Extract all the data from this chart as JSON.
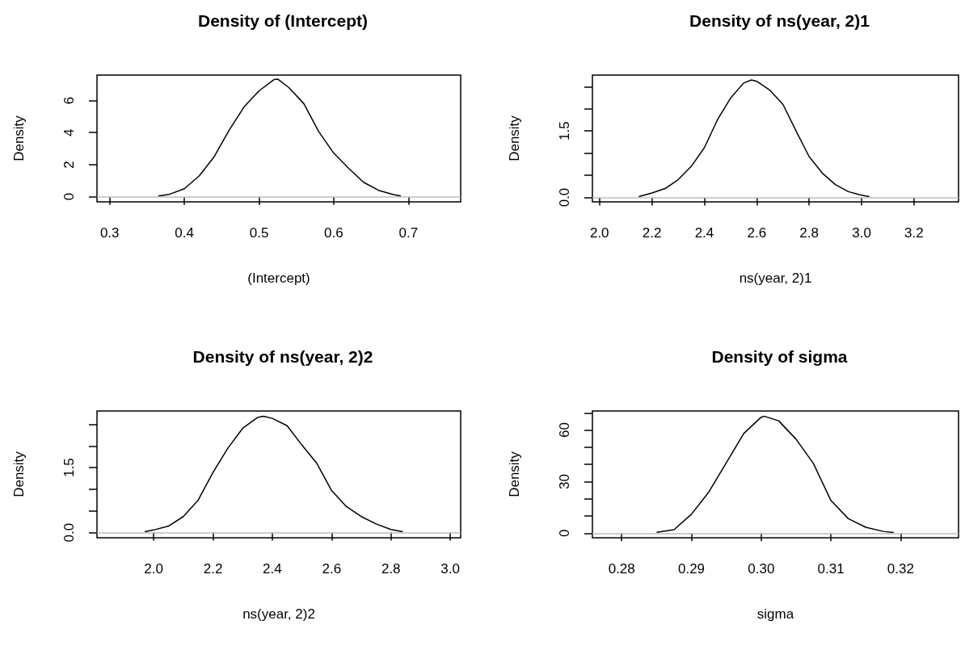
{
  "chart_data": [
    {
      "type": "line",
      "title": "Density of (Intercept)",
      "xlabel": "(Intercept)",
      "ylabel": "Density",
      "color": "#000000",
      "x": [
        0.365,
        0.38,
        0.4,
        0.42,
        0.44,
        0.46,
        0.48,
        0.5,
        0.52,
        0.525,
        0.54,
        0.56,
        0.58,
        0.6,
        0.62,
        0.64,
        0.66,
        0.68,
        0.69
      ],
      "values": [
        0.05,
        0.15,
        0.5,
        1.3,
        2.5,
        4.15,
        5.6,
        6.6,
        7.3,
        7.33,
        6.8,
        5.8,
        4.05,
        2.72,
        1.77,
        0.9,
        0.4,
        0.13,
        0.05
      ],
      "xlim": [
        0.283,
        0.77
      ],
      "xticks": [
        0.3,
        0.4,
        0.5,
        0.6,
        0.7
      ],
      "ylim": [
        -0.32,
        7.58
      ],
      "yticks": [
        0,
        2,
        4,
        6
      ],
      "ref_lines": [
        {
          "axis": "y",
          "value": 0,
          "color": "#bebebe"
        }
      ]
    },
    {
      "type": "line",
      "title": "Density of ns(year, 2)1",
      "xlabel": "ns(year, 2)1",
      "ylabel": "Density",
      "color": "#000000",
      "x": [
        2.15,
        2.2,
        2.25,
        2.3,
        2.35,
        2.4,
        2.45,
        2.5,
        2.55,
        2.58,
        2.6,
        2.65,
        2.7,
        2.75,
        2.8,
        2.85,
        2.9,
        2.95,
        3.0,
        3.03
      ],
      "values": [
        0.02,
        0.1,
        0.2,
        0.4,
        0.7,
        1.12,
        1.75,
        2.24,
        2.58,
        2.65,
        2.62,
        2.42,
        2.1,
        1.5,
        0.92,
        0.55,
        0.29,
        0.13,
        0.05,
        0.02
      ],
      "xlim": [
        1.973,
        3.37
      ],
      "xticks": [
        {
          "value": 2,
          "label": "2.0"
        },
        {
          "value": 2.2,
          "label": "2.2"
        },
        2.4,
        2.6,
        2.8,
        {
          "value": 3,
          "label": "3.0"
        },
        3.2
      ],
      "ylim": [
        -0.1,
        2.76
      ],
      "yticks": [
        {
          "value": 0,
          "label": "0.0"
        },
        {
          "value": 0.5,
          "label": null
        },
        {
          "value": 1,
          "label": null
        },
        1.5,
        {
          "value": 2,
          "label": null
        },
        {
          "value": 2.5,
          "label": null
        }
      ],
      "ref_lines": [
        {
          "axis": "y",
          "value": 0,
          "color": "#bebebe"
        }
      ]
    },
    {
      "type": "line",
      "title": "Density of ns(year, 2)2",
      "xlabel": "ns(year, 2)2",
      "ylabel": "Density",
      "color": "#000000",
      "x": [
        1.97,
        2.0,
        2.05,
        2.1,
        2.15,
        2.2,
        2.25,
        2.3,
        2.35,
        2.37,
        2.4,
        2.45,
        2.5,
        2.55,
        2.6,
        2.65,
        2.7,
        2.75,
        2.8,
        2.84
      ],
      "values": [
        0.02,
        0.06,
        0.15,
        0.37,
        0.75,
        1.39,
        1.95,
        2.41,
        2.66,
        2.69,
        2.64,
        2.47,
        2.02,
        1.6,
        0.97,
        0.6,
        0.37,
        0.2,
        0.07,
        0.02
      ],
      "xlim": [
        1.809,
        3.035
      ],
      "xticks": [
        {
          "value": 2,
          "label": "2.0"
        },
        2.2,
        2.4,
        2.6,
        2.8,
        {
          "value": 3,
          "label": "3.0"
        }
      ],
      "ylim": [
        -0.12,
        2.81
      ],
      "yticks": [
        {
          "value": 0,
          "label": "0.0"
        },
        {
          "value": 0.5,
          "label": null
        },
        {
          "value": 1,
          "label": null
        },
        1.5,
        {
          "value": 2,
          "label": null
        },
        {
          "value": 2.5,
          "label": null
        }
      ],
      "ref_lines": [
        {
          "axis": "y",
          "value": 0,
          "color": "#bebebe"
        }
      ]
    },
    {
      "type": "line",
      "title": "Density of sigma",
      "xlabel": "sigma",
      "ylabel": "Density",
      "color": "#000000",
      "x": [
        0.285,
        0.2875,
        0.29,
        0.2925,
        0.295,
        0.2975,
        0.3,
        0.3005,
        0.3025,
        0.305,
        0.3075,
        0.31,
        0.3125,
        0.315,
        0.3175,
        0.319
      ],
      "values": [
        0.5,
        2,
        11,
        24,
        41,
        58,
        67.5,
        68,
        65.4,
        54.7,
        40.5,
        19,
        8.4,
        3.4,
        1,
        0.3
      ],
      "xlim": [
        0.2758,
        0.3283
      ],
      "xticks": [
        0.28,
        0.29,
        {
          "value": 0.3,
          "label": "0.30"
        },
        0.31,
        0.32
      ],
      "ylim": [
        -2.7,
        71.1
      ],
      "yticks": [
        0,
        {
          "value": 10,
          "label": null
        },
        {
          "value": 20,
          "label": null
        },
        30,
        {
          "value": 40,
          "label": null
        },
        {
          "value": 50,
          "label": null
        },
        60,
        {
          "value": 70,
          "label": null
        }
      ],
      "ref_lines": [
        {
          "axis": "y",
          "value": 0,
          "color": "#bebebe"
        }
      ]
    }
  ]
}
